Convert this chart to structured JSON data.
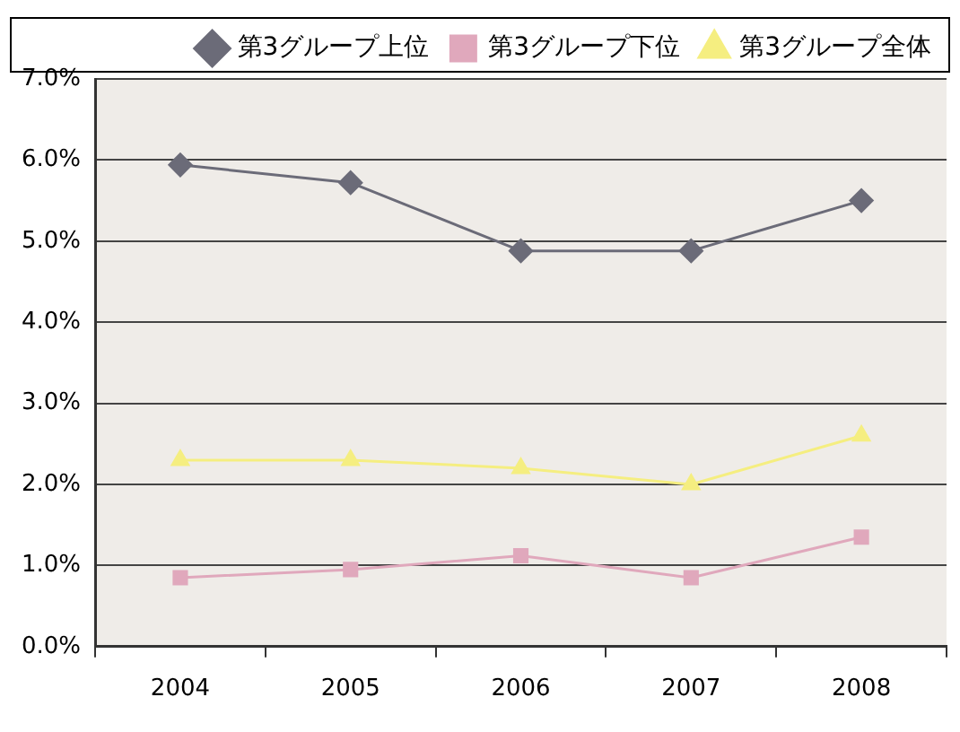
{
  "chart_data": {
    "type": "line",
    "categories": [
      "2004",
      "2005",
      "2006",
      "2007",
      "2008"
    ],
    "series": [
      {
        "name": "第3グループ上位",
        "color": "#6b6b78",
        "marker": "diamond",
        "values": [
          5.94,
          5.72,
          4.88,
          4.88,
          5.5
        ]
      },
      {
        "name": "第3グループ下位",
        "color": "#e0a8bc",
        "marker": "square",
        "values": [
          0.85,
          0.95,
          1.12,
          0.85,
          1.35
        ]
      },
      {
        "name": "第3グループ全体",
        "color": "#f5ee80",
        "marker": "triangle",
        "values": [
          2.3,
          2.3,
          2.2,
          2.0,
          2.6
        ]
      }
    ],
    "ylim": [
      0,
      7
    ],
    "yticks": [
      {
        "value": 0,
        "label": "0.0%"
      },
      {
        "value": 1,
        "label": "1.0%"
      },
      {
        "value": 2,
        "label": "2.0%"
      },
      {
        "value": 3,
        "label": "3.0%"
      },
      {
        "value": 4,
        "label": "4.0%"
      },
      {
        "value": 5,
        "label": "5.0%"
      },
      {
        "value": 6,
        "label": "6.0%"
      },
      {
        "value": 7,
        "label": "7.0%"
      }
    ],
    "grid": "y",
    "legend": "top right",
    "line_style": "solid"
  }
}
